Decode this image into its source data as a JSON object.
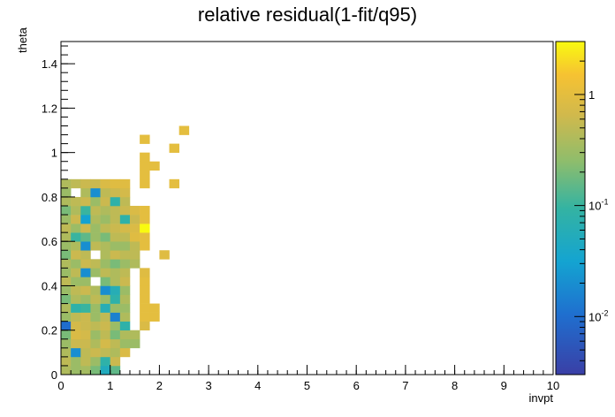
{
  "chart_data": {
    "type": "heatmap",
    "title": "relative residual(1-fit/q95)",
    "xlabel": "invpt",
    "ylabel": "theta",
    "xlim": [
      0,
      10
    ],
    "ylim": [
      0,
      1.5
    ],
    "x_ticks": [
      "0",
      "1",
      "2",
      "3",
      "4",
      "5",
      "6",
      "7",
      "8",
      "9",
      "10"
    ],
    "y_ticks": [
      "0",
      "0.2",
      "0.4",
      "0.6",
      "0.8",
      "1",
      "1.2",
      "1.4"
    ],
    "colorbar": {
      "scale": "log",
      "range": [
        0.003,
        3
      ],
      "tick_labels": [
        {
          "value": 1,
          "label": "1"
        },
        {
          "value": 0.1,
          "label": "10^-1"
        },
        {
          "value": 0.01,
          "label": "10^-2"
        }
      ]
    },
    "cell_size": {
      "invpt": 0.2,
      "theta": 0.04
    },
    "cells": [
      [
        0.0,
        0.0,
        0.4
      ],
      [
        0.2,
        0.0,
        0.3
      ],
      [
        0.4,
        0.0,
        0.35
      ],
      [
        0.6,
        0.0,
        0.2
      ],
      [
        0.8,
        0.0,
        0.05
      ],
      [
        1.0,
        0.0,
        0.15
      ],
      [
        0.0,
        0.04,
        0.5
      ],
      [
        0.2,
        0.04,
        0.3
      ],
      [
        0.4,
        0.04,
        0.5
      ],
      [
        0.6,
        0.04,
        0.3
      ],
      [
        0.8,
        0.04,
        0.08
      ],
      [
        1.0,
        0.04,
        0.6
      ],
      [
        0.0,
        0.08,
        0.4
      ],
      [
        0.2,
        0.08,
        0.02
      ],
      [
        0.4,
        0.08,
        0.5
      ],
      [
        0.6,
        0.08,
        0.6
      ],
      [
        0.8,
        0.08,
        0.5
      ],
      [
        1.0,
        0.08,
        0.4
      ],
      [
        1.2,
        0.08,
        0.8
      ],
      [
        0.0,
        0.12,
        0.3
      ],
      [
        0.2,
        0.12,
        0.6
      ],
      [
        0.4,
        0.12,
        0.6
      ],
      [
        0.6,
        0.12,
        0.4
      ],
      [
        0.8,
        0.12,
        0.7
      ],
      [
        1.0,
        0.12,
        0.5
      ],
      [
        1.2,
        0.12,
        0.3
      ],
      [
        1.4,
        0.12,
        0.3
      ],
      [
        0.0,
        0.16,
        0.2
      ],
      [
        0.2,
        0.16,
        0.8
      ],
      [
        0.4,
        0.16,
        0.7
      ],
      [
        0.6,
        0.16,
        0.3
      ],
      [
        0.8,
        0.16,
        0.5
      ],
      [
        1.0,
        0.16,
        0.2
      ],
      [
        1.2,
        0.16,
        0.4
      ],
      [
        1.4,
        0.16,
        0.4
      ],
      [
        0.0,
        0.2,
        0.01
      ],
      [
        0.2,
        0.2,
        0.7
      ],
      [
        0.4,
        0.2,
        0.6
      ],
      [
        0.6,
        0.2,
        0.5
      ],
      [
        0.8,
        0.2,
        0.6
      ],
      [
        1.0,
        0.2,
        0.3
      ],
      [
        1.2,
        0.2,
        0.08
      ],
      [
        1.6,
        0.2,
        0.8
      ],
      [
        0.0,
        0.24,
        0.3
      ],
      [
        0.2,
        0.24,
        0.5
      ],
      [
        0.4,
        0.24,
        0.6
      ],
      [
        0.6,
        0.24,
        0.3
      ],
      [
        0.8,
        0.24,
        0.5
      ],
      [
        1.0,
        0.24,
        0.015
      ],
      [
        1.2,
        0.24,
        0.4
      ],
      [
        1.6,
        0.24,
        1.0
      ],
      [
        1.8,
        0.24,
        1.0
      ],
      [
        0.0,
        0.28,
        0.4
      ],
      [
        0.2,
        0.28,
        0.08
      ],
      [
        0.4,
        0.28,
        0.1
      ],
      [
        0.6,
        0.28,
        0.3
      ],
      [
        0.8,
        0.28,
        0.06
      ],
      [
        1.0,
        0.28,
        0.3
      ],
      [
        1.2,
        0.28,
        0.3
      ],
      [
        1.6,
        0.28,
        1.0
      ],
      [
        1.8,
        0.28,
        1.0
      ],
      [
        0.0,
        0.32,
        0.2
      ],
      [
        0.2,
        0.32,
        0.4
      ],
      [
        0.4,
        0.32,
        0.3
      ],
      [
        0.6,
        0.32,
        0.5
      ],
      [
        0.8,
        0.32,
        0.3
      ],
      [
        1.0,
        0.32,
        0.08
      ],
      [
        1.2,
        0.32,
        0.4
      ],
      [
        1.6,
        0.32,
        1.0
      ],
      [
        0.0,
        0.36,
        0.3
      ],
      [
        0.2,
        0.36,
        0.5
      ],
      [
        0.4,
        0.36,
        0.6
      ],
      [
        0.6,
        0.36,
        0.4
      ],
      [
        0.8,
        0.36,
        0.02
      ],
      [
        1.0,
        0.36,
        0.06
      ],
      [
        1.2,
        0.36,
        0.3
      ],
      [
        1.6,
        0.36,
        1.0
      ],
      [
        0.0,
        0.4,
        0.5
      ],
      [
        0.2,
        0.4,
        0.3
      ],
      [
        0.4,
        0.4,
        0.3
      ],
      [
        0.8,
        0.4,
        0.2
      ],
      [
        1.0,
        0.4,
        0.4
      ],
      [
        1.2,
        0.4,
        0.6
      ],
      [
        1.6,
        0.4,
        1.0
      ],
      [
        0.0,
        0.44,
        0.3
      ],
      [
        0.2,
        0.44,
        0.5
      ],
      [
        0.4,
        0.44,
        0.02
      ],
      [
        0.6,
        0.44,
        0.3
      ],
      [
        0.8,
        0.44,
        0.5
      ],
      [
        1.0,
        0.44,
        0.4
      ],
      [
        1.2,
        0.44,
        0.5
      ],
      [
        1.6,
        0.44,
        0.9
      ],
      [
        0.0,
        0.48,
        0.4
      ],
      [
        0.2,
        0.48,
        0.3
      ],
      [
        0.4,
        0.48,
        0.6
      ],
      [
        0.6,
        0.48,
        0.5
      ],
      [
        0.8,
        0.48,
        0.3
      ],
      [
        1.0,
        0.48,
        0.2
      ],
      [
        1.2,
        0.48,
        0.3
      ],
      [
        1.4,
        0.48,
        0.4
      ],
      [
        0.0,
        0.52,
        0.2
      ],
      [
        0.2,
        0.52,
        0.6
      ],
      [
        0.4,
        0.52,
        0.5
      ],
      [
        0.8,
        0.52,
        0.4
      ],
      [
        1.0,
        0.52,
        0.6
      ],
      [
        1.2,
        0.52,
        0.5
      ],
      [
        1.4,
        0.52,
        0.5
      ],
      [
        2.0,
        0.52,
        0.9
      ],
      [
        0.0,
        0.56,
        0.3
      ],
      [
        0.2,
        0.56,
        0.4
      ],
      [
        0.4,
        0.56,
        0.02
      ],
      [
        0.6,
        0.56,
        0.5
      ],
      [
        0.8,
        0.56,
        0.4
      ],
      [
        1.0,
        0.56,
        0.3
      ],
      [
        1.2,
        0.56,
        0.3
      ],
      [
        1.4,
        0.56,
        0.5
      ],
      [
        1.6,
        0.56,
        1.0
      ],
      [
        0.0,
        0.6,
        0.4
      ],
      [
        0.2,
        0.6,
        0.1
      ],
      [
        0.4,
        0.6,
        0.15
      ],
      [
        0.6,
        0.6,
        0.3
      ],
      [
        0.8,
        0.6,
        0.2
      ],
      [
        1.0,
        0.6,
        0.5
      ],
      [
        1.2,
        0.6,
        0.5
      ],
      [
        1.4,
        0.6,
        0.9
      ],
      [
        1.6,
        0.6,
        1.0
      ],
      [
        0.0,
        0.64,
        0.5
      ],
      [
        0.2,
        0.64,
        0.3
      ],
      [
        0.4,
        0.64,
        0.6
      ],
      [
        0.6,
        0.64,
        0.3
      ],
      [
        0.8,
        0.64,
        0.5
      ],
      [
        1.0,
        0.64,
        0.6
      ],
      [
        1.2,
        0.64,
        0.7
      ],
      [
        1.4,
        0.64,
        0.8
      ],
      [
        1.6,
        0.64,
        3.0
      ],
      [
        0.0,
        0.68,
        0.3
      ],
      [
        0.2,
        0.68,
        0.6
      ],
      [
        0.4,
        0.68,
        0.03
      ],
      [
        0.6,
        0.68,
        0.4
      ],
      [
        0.8,
        0.68,
        0.3
      ],
      [
        1.0,
        0.68,
        0.5
      ],
      [
        1.2,
        0.68,
        0.08
      ],
      [
        1.4,
        0.68,
        0.6
      ],
      [
        1.6,
        0.68,
        1.0
      ],
      [
        0.0,
        0.72,
        0.2
      ],
      [
        0.2,
        0.72,
        0.4
      ],
      [
        0.4,
        0.72,
        0.1
      ],
      [
        0.6,
        0.72,
        0.5
      ],
      [
        0.8,
        0.72,
        0.4
      ],
      [
        1.0,
        0.72,
        0.5
      ],
      [
        1.2,
        0.72,
        0.6
      ],
      [
        1.4,
        0.72,
        0.8
      ],
      [
        1.6,
        0.72,
        1.0
      ],
      [
        0.0,
        0.76,
        0.4
      ],
      [
        0.2,
        0.76,
        0.5
      ],
      [
        0.4,
        0.76,
        0.6
      ],
      [
        0.6,
        0.76,
        0.3
      ],
      [
        0.8,
        0.76,
        0.6
      ],
      [
        1.0,
        0.76,
        0.08
      ],
      [
        1.2,
        0.76,
        0.5
      ],
      [
        0.0,
        0.8,
        0.3
      ],
      [
        0.4,
        0.8,
        0.4
      ],
      [
        0.6,
        0.8,
        0.02
      ],
      [
        0.8,
        0.8,
        0.5
      ],
      [
        1.0,
        0.8,
        0.6
      ],
      [
        1.2,
        0.8,
        0.7
      ],
      [
        0.0,
        0.84,
        0.4
      ],
      [
        0.2,
        0.84,
        0.5
      ],
      [
        0.4,
        0.84,
        0.6
      ],
      [
        0.6,
        0.84,
        0.6
      ],
      [
        0.8,
        0.84,
        0.8
      ],
      [
        1.0,
        0.84,
        0.9
      ],
      [
        1.2,
        0.84,
        0.9
      ],
      [
        1.6,
        0.84,
        1.0
      ],
      [
        1.6,
        0.88,
        1.0
      ],
      [
        2.2,
        0.84,
        1.0
      ],
      [
        1.6,
        0.92,
        1.0
      ],
      [
        1.8,
        0.92,
        1.0
      ],
      [
        1.6,
        0.96,
        1.0
      ],
      [
        2.2,
        1.0,
        1.0
      ],
      [
        1.6,
        1.04,
        1.0
      ],
      [
        2.4,
        1.08,
        1.0
      ]
    ]
  }
}
